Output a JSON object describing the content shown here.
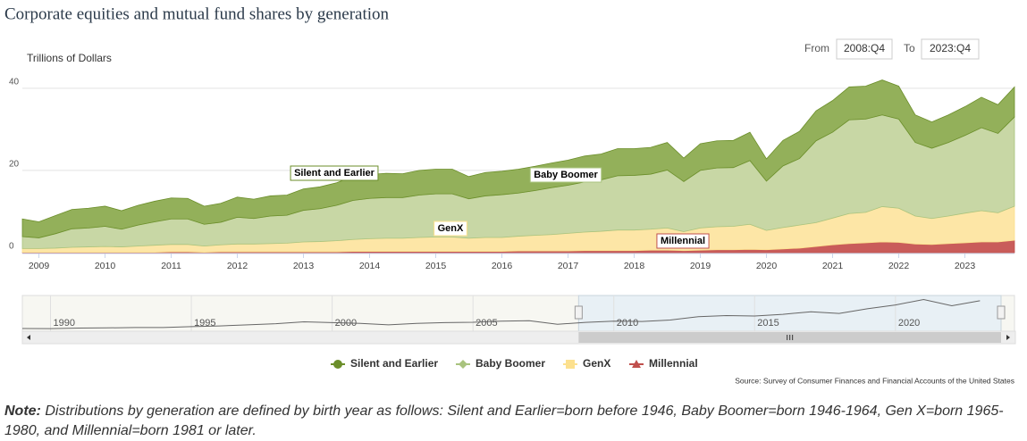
{
  "chart_data": [
    {
      "type": "area",
      "title": "Corporate equities and mutual fund shares by generation",
      "y_label": "Trillions of Dollars",
      "range_from_label": "From",
      "range_to_label": "To",
      "source": "Source: Survey of Consumer Finances and Financial Accounts of the United States",
      "note_label": "Note:",
      "note": "Distributions by generation are defined by birth year as follows: Silent and Earlier=born before 1946, Baby Boomer=born 1946-1964, Gen X=born 1965-1980, and Millennial=born 1981 or later.",
      "x": [
        "2008:Q4",
        "2009:Q1",
        "2009:Q2",
        "2009:Q3",
        "2009:Q4",
        "2010:Q1",
        "2010:Q2",
        "2010:Q3",
        "2010:Q4",
        "2011:Q1",
        "2011:Q2",
        "2011:Q3",
        "2011:Q4",
        "2012:Q1",
        "2012:Q2",
        "2012:Q3",
        "2012:Q4",
        "2013:Q1",
        "2013:Q2",
        "2013:Q3",
        "2013:Q4",
        "2014:Q1",
        "2014:Q2",
        "2014:Q3",
        "2014:Q4",
        "2015:Q1",
        "2015:Q2",
        "2015:Q3",
        "2015:Q4",
        "2016:Q1",
        "2016:Q2",
        "2016:Q3",
        "2016:Q4",
        "2017:Q1",
        "2017:Q2",
        "2017:Q3",
        "2017:Q4",
        "2018:Q1",
        "2018:Q2",
        "2018:Q3",
        "2018:Q4",
        "2019:Q1",
        "2019:Q2",
        "2019:Q3",
        "2019:Q4",
        "2020:Q1",
        "2020:Q2",
        "2020:Q3",
        "2020:Q4",
        "2021:Q1",
        "2021:Q2",
        "2021:Q3",
        "2021:Q4",
        "2022:Q1",
        "2022:Q2",
        "2022:Q3",
        "2022:Q4",
        "2023:Q1",
        "2023:Q2",
        "2023:Q3",
        "2023:Q4"
      ],
      "series": [
        {
          "name": "Silent and Earlier",
          "color": "#6b8e2a",
          "fill": "#93b05a",
          "marker": "circle",
          "values": [
            4.3,
            3.9,
            4.4,
            4.7,
            4.8,
            4.9,
            4.5,
            4.8,
            5.0,
            5.1,
            5.0,
            4.4,
            4.6,
            4.9,
            4.7,
            4.9,
            4.9,
            5.2,
            5.3,
            5.5,
            5.8,
            5.8,
            5.9,
            5.8,
            6.0,
            6.0,
            6.0,
            5.4,
            5.7,
            5.7,
            5.8,
            5.9,
            6.0,
            6.1,
            6.3,
            6.3,
            6.6,
            6.5,
            6.5,
            6.7,
            5.7,
            6.5,
            6.6,
            6.6,
            6.9,
            5.4,
            6.2,
            6.6,
            7.3,
            7.7,
            8.0,
            8.0,
            8.5,
            8.0,
            6.7,
            6.4,
            6.7,
            7.0,
            7.4,
            7.0,
            7.3
          ]
        },
        {
          "name": "Baby Boomer",
          "color": "#a9c37e",
          "fill": "#c8d7a5",
          "marker": "diamond",
          "values": [
            2.9,
            2.6,
            3.5,
            4.5,
            4.6,
            4.9,
            4.3,
            5.1,
            5.7,
            6.2,
            6.2,
            5.3,
            5.5,
            6.5,
            6.2,
            6.7,
            6.8,
            7.7,
            8.0,
            8.6,
            9.5,
            9.8,
            9.9,
            9.9,
            10.3,
            10.5,
            10.5,
            9.6,
            10.1,
            10.4,
            10.5,
            10.9,
            11.4,
            11.7,
            12.2,
            12.5,
            13.2,
            13.3,
            13.4,
            14.1,
            12.2,
            14.0,
            14.3,
            14.3,
            15.5,
            12.0,
            15.0,
            16.2,
            19.9,
            20.9,
            22.8,
            22.7,
            22.3,
            21.7,
            17.9,
            17.1,
            17.9,
            18.9,
            20.2,
            19.3,
            21.7
          ]
        },
        {
          "name": "GenX",
          "color": "#fce08e",
          "fill": "#fde6a6",
          "marker": "square",
          "values": [
            0.9,
            0.9,
            1.0,
            1.2,
            1.3,
            1.4,
            1.3,
            1.5,
            1.7,
            1.8,
            1.8,
            1.5,
            1.7,
            1.9,
            1.9,
            2.0,
            2.1,
            2.4,
            2.5,
            2.7,
            2.9,
            3.1,
            3.2,
            3.2,
            3.4,
            3.5,
            3.5,
            3.2,
            3.4,
            3.4,
            3.6,
            3.8,
            4.0,
            4.3,
            4.5,
            4.7,
            5.0,
            5.0,
            5.1,
            5.4,
            4.6,
            5.4,
            5.6,
            5.7,
            6.1,
            4.7,
            5.2,
            5.6,
            5.8,
            6.5,
            7.3,
            7.4,
            8.6,
            8.3,
            6.8,
            6.3,
            6.7,
            7.2,
            7.6,
            7.1,
            8.3
          ]
        },
        {
          "name": "Millennial",
          "color": "#c0504d",
          "fill": "#c95c5a",
          "marker": "triangle",
          "values": [
            0.1,
            0.1,
            0.1,
            0.1,
            0.1,
            0.1,
            0.1,
            0.1,
            0.1,
            0.2,
            0.2,
            0.1,
            0.2,
            0.2,
            0.2,
            0.2,
            0.2,
            0.2,
            0.2,
            0.2,
            0.3,
            0.3,
            0.3,
            0.3,
            0.3,
            0.3,
            0.3,
            0.3,
            0.3,
            0.3,
            0.4,
            0.4,
            0.4,
            0.4,
            0.5,
            0.5,
            0.5,
            0.5,
            0.6,
            0.6,
            0.5,
            0.6,
            0.7,
            0.7,
            0.8,
            0.7,
            0.9,
            1.1,
            1.5,
            1.9,
            2.2,
            2.4,
            2.6,
            2.5,
            2.1,
            2.0,
            2.2,
            2.4,
            2.6,
            2.6,
            3.0
          ]
        }
      ],
      "ylim": [
        0,
        43
      ],
      "yticks": [
        0,
        20,
        40
      ],
      "xticks": [
        2009,
        2010,
        2011,
        2012,
        2013,
        2014,
        2015,
        2016,
        2017,
        2018,
        2019,
        2020,
        2021,
        2022,
        2023
      ],
      "grid": true,
      "stacked": true
    },
    {
      "type": "line",
      "color": "#666666",
      "x": [
        1989,
        1990,
        1991,
        1992,
        1993,
        1994,
        1995,
        1996,
        1997,
        1998,
        1999,
        2000,
        2001,
        2002,
        2003,
        2004,
        2005,
        2006,
        2007,
        2008,
        2009,
        2010,
        2011,
        2012,
        2013,
        2014,
        2015,
        2016,
        2017,
        2018,
        2019,
        2020,
        2021,
        2022,
        2023
      ],
      "values": [
        2.5,
        2.3,
        3.0,
        3.3,
        3.8,
        3.8,
        5.0,
        6.0,
        7.5,
        9.0,
        11.5,
        10.5,
        9.5,
        7.5,
        9.5,
        10.5,
        11.0,
        12.5,
        13.0,
        8.2,
        10.8,
        12.5,
        12.0,
        14.0,
        18.5,
        20.0,
        19.5,
        21.8,
        25.3,
        23.0,
        29.3,
        34.5,
        42.0,
        33.5,
        40.3
      ],
      "xlim": [
        1989,
        2023.75
      ],
      "ylim": [
        0,
        45
      ],
      "xticks": [
        1990,
        1995,
        2000,
        2005,
        2010,
        2015,
        2020
      ]
    }
  ]
}
